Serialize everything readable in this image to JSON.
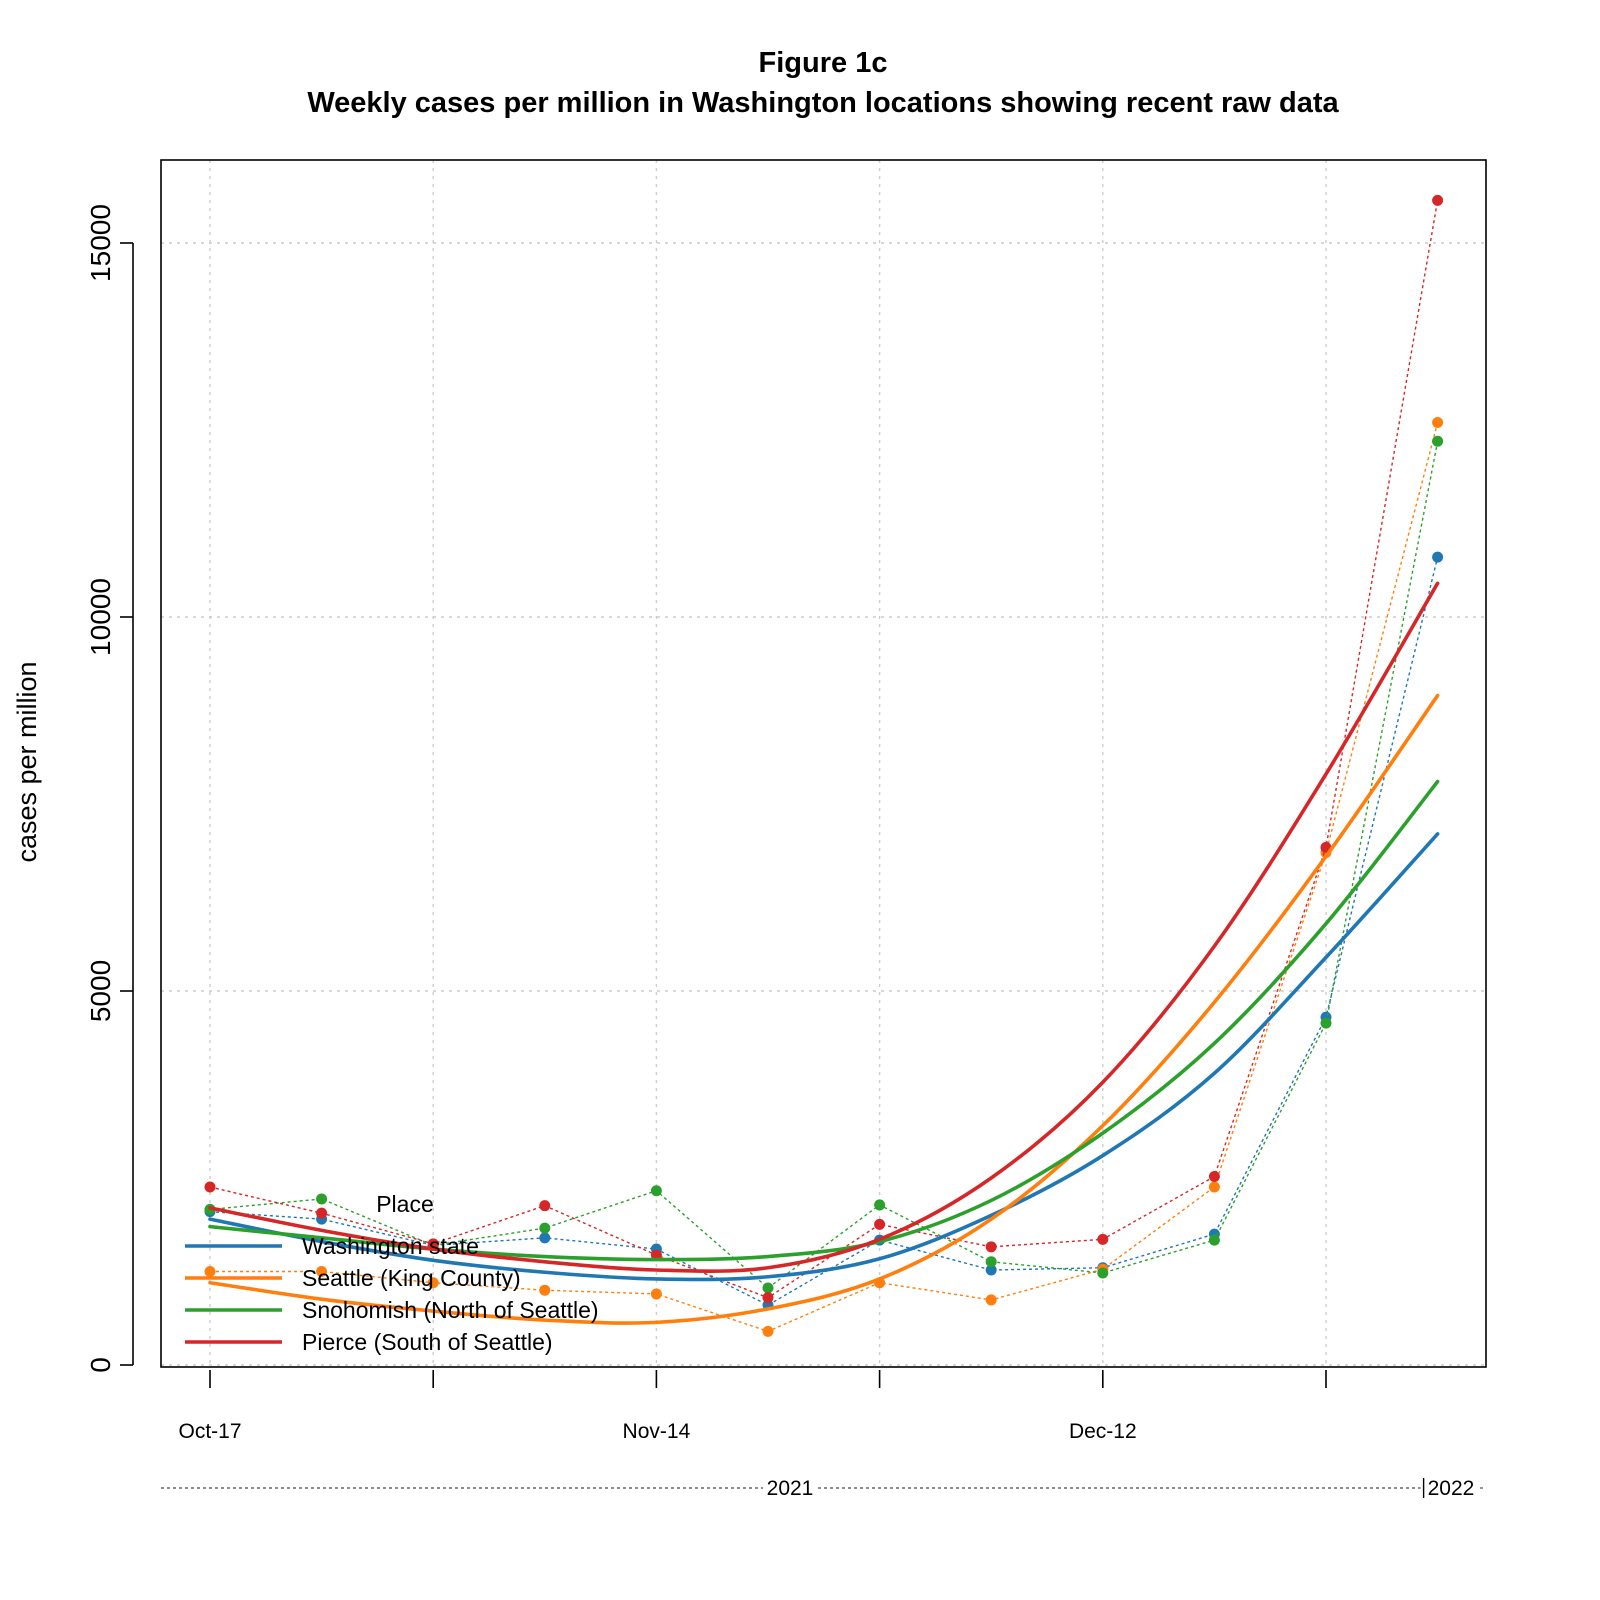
{
  "chart_data": {
    "type": "line",
    "title": "Figure 1c",
    "subtitle": "Weekly cases per million in Washington locations showing recent raw data",
    "xlabel": "",
    "ylabel": "cases per million",
    "x_tick_labels": [
      "Oct-17",
      "Nov-14",
      "Dec-12"
    ],
    "x_tick_label_dates": [
      "2021-10-17",
      "2021-11-14",
      "2021-12-12"
    ],
    "x_dates": [
      "2021-10-17",
      "2021-10-24",
      "2021-10-31",
      "2021-11-07",
      "2021-11-14",
      "2021-11-21",
      "2021-11-28",
      "2021-12-05",
      "2021-12-12",
      "2021-12-19",
      "2021-12-26",
      "2022-01-02"
    ],
    "major_tick_dates": [
      "2021-10-17",
      "2021-10-31",
      "2021-11-14",
      "2021-11-28",
      "2021-12-12",
      "2021-12-26",
      "2022-01-02"
    ],
    "year_labels": [
      {
        "label": "2021",
        "date": "2021-11-28"
      },
      {
        "label": "2022",
        "date": "2022-01-02"
      }
    ],
    "ylim": [
      0,
      16000
    ],
    "yticks": [
      0,
      5000,
      10000,
      15000
    ],
    "grid": true,
    "legend": {
      "title": "Place",
      "position": "bottom-left"
    },
    "series": [
      {
        "name": "Washington state",
        "color": "#1f77b4",
        "raw": [
          2050,
          1950,
          1600,
          1700,
          1550,
          800,
          1670,
          1270,
          1300,
          1750,
          4650,
          10800
        ],
        "smooth": [
          1950,
          1650,
          1400,
          1240,
          1150,
          1180,
          1420,
          2000,
          2800,
          3900,
          5450,
          7100
        ]
      },
      {
        "name": "Seattle (King County)",
        "color": "#ff7f0e",
        "raw": [
          1250,
          1250,
          1100,
          1000,
          950,
          450,
          1100,
          870,
          1280,
          2380,
          6850,
          12600
        ],
        "smooth": [
          1100,
          880,
          720,
          600,
          570,
          750,
          1150,
          1950,
          3200,
          4850,
          6800,
          8950
        ]
      },
      {
        "name": "Snohomish (North of Seattle)",
        "color": "#2ca02c",
        "raw": [
          2080,
          2220,
          1600,
          1830,
          2330,
          1030,
          2140,
          1380,
          1230,
          1670,
          4570,
          12350
        ],
        "smooth": [
          1850,
          1700,
          1550,
          1450,
          1410,
          1450,
          1650,
          2200,
          3100,
          4300,
          5900,
          7800
        ]
      },
      {
        "name": "Pierce (South of Seattle)",
        "color": "#d62728",
        "raw": [
          2380,
          2030,
          1620,
          2130,
          1470,
          900,
          1880,
          1580,
          1680,
          2520,
          6920,
          15570
        ],
        "smooth": [
          2100,
          1800,
          1550,
          1380,
          1270,
          1300,
          1680,
          2500,
          3780,
          5600,
          7900,
          10450
        ]
      }
    ]
  }
}
